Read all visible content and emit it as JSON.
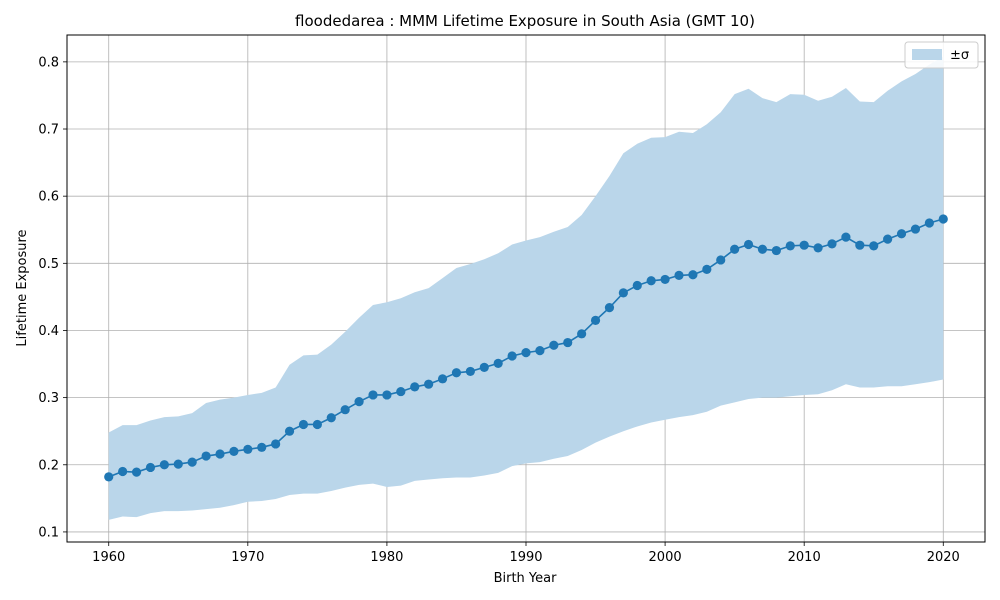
{
  "chart_data": {
    "type": "line",
    "title": "floodedarea : MMM Lifetime Exposure in South Asia (GMT 10)",
    "xlabel": "Birth Year",
    "ylabel": "Lifetime Exposure",
    "xlim": [
      1957,
      2023
    ],
    "ylim": [
      0.085,
      0.84
    ],
    "xticks": [
      1960,
      1970,
      1980,
      1990,
      2000,
      2010,
      2020
    ],
    "yticks": [
      0.1,
      0.2,
      0.3,
      0.4,
      0.5,
      0.6,
      0.7,
      0.8
    ],
    "grid": true,
    "legend": {
      "placement": "top-right",
      "entries": [
        "±σ"
      ]
    },
    "colors": {
      "line": "#1f77b4",
      "band": "#bad6ea"
    },
    "x": [
      1960,
      1961,
      1962,
      1963,
      1964,
      1965,
      1966,
      1967,
      1968,
      1969,
      1970,
      1971,
      1972,
      1973,
      1974,
      1975,
      1976,
      1977,
      1978,
      1979,
      1980,
      1981,
      1982,
      1983,
      1984,
      1985,
      1986,
      1987,
      1988,
      1989,
      1990,
      1991,
      1992,
      1993,
      1994,
      1995,
      1996,
      1997,
      1998,
      1999,
      2000,
      2001,
      2002,
      2003,
      2004,
      2005,
      2006,
      2007,
      2008,
      2009,
      2010,
      2011,
      2012,
      2013,
      2014,
      2015,
      2016,
      2017,
      2018,
      2019,
      2020
    ],
    "series": [
      {
        "name": "mean",
        "values": [
          0.182,
          0.19,
          0.189,
          0.196,
          0.2,
          0.201,
          0.204,
          0.213,
          0.216,
          0.22,
          0.223,
          0.226,
          0.231,
          0.25,
          0.26,
          0.26,
          0.27,
          0.282,
          0.294,
          0.304,
          0.304,
          0.309,
          0.316,
          0.32,
          0.328,
          0.337,
          0.339,
          0.345,
          0.351,
          0.362,
          0.367,
          0.37,
          0.378,
          0.382,
          0.395,
          0.415,
          0.434,
          0.456,
          0.467,
          0.474,
          0.476,
          0.482,
          0.483,
          0.491,
          0.505,
          0.521,
          0.528,
          0.521,
          0.519,
          0.526,
          0.527,
          0.523,
          0.529,
          0.539,
          0.527,
          0.526,
          0.536,
          0.544,
          0.551,
          0.56,
          0.566
        ]
      },
      {
        "name": "±σ",
        "lower": [
          0.118,
          0.123,
          0.122,
          0.128,
          0.131,
          0.131,
          0.132,
          0.134,
          0.136,
          0.14,
          0.145,
          0.146,
          0.149,
          0.155,
          0.157,
          0.157,
          0.161,
          0.166,
          0.17,
          0.172,
          0.167,
          0.169,
          0.176,
          0.178,
          0.18,
          0.181,
          0.181,
          0.184,
          0.188,
          0.198,
          0.202,
          0.204,
          0.209,
          0.213,
          0.222,
          0.233,
          0.242,
          0.25,
          0.257,
          0.263,
          0.267,
          0.271,
          0.274,
          0.279,
          0.288,
          0.293,
          0.298,
          0.3,
          0.3,
          0.302,
          0.304,
          0.305,
          0.311,
          0.32,
          0.315,
          0.315,
          0.317,
          0.317,
          0.32,
          0.323,
          0.327
        ],
        "upper": [
          0.248,
          0.259,
          0.259,
          0.266,
          0.271,
          0.272,
          0.277,
          0.292,
          0.297,
          0.3,
          0.304,
          0.307,
          0.315,
          0.349,
          0.363,
          0.364,
          0.379,
          0.398,
          0.419,
          0.438,
          0.442,
          0.448,
          0.457,
          0.463,
          0.478,
          0.493,
          0.499,
          0.506,
          0.515,
          0.528,
          0.534,
          0.539,
          0.547,
          0.554,
          0.572,
          0.6,
          0.63,
          0.664,
          0.678,
          0.687,
          0.688,
          0.696,
          0.694,
          0.707,
          0.725,
          0.752,
          0.76,
          0.746,
          0.74,
          0.752,
          0.751,
          0.742,
          0.748,
          0.761,
          0.741,
          0.74,
          0.757,
          0.771,
          0.782,
          0.796,
          0.808
        ]
      }
    ]
  }
}
